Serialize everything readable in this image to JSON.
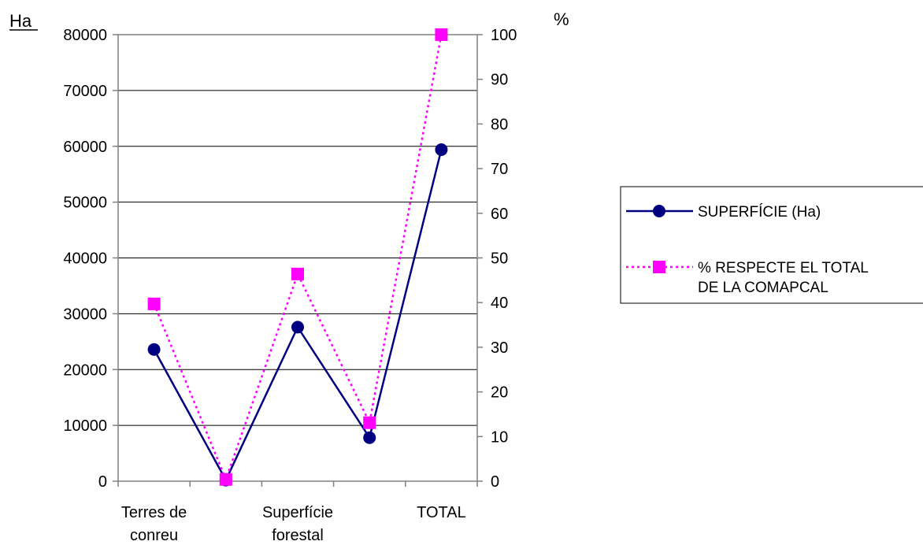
{
  "chart_data": {
    "type": "line",
    "categories": [
      "Terres de conreu",
      "",
      "Superfície forestal",
      "",
      "TOTAL"
    ],
    "y_left": {
      "label": "Ha",
      "ylim": [
        0,
        80000
      ],
      "ticks": [
        0,
        10000,
        20000,
        30000,
        40000,
        50000,
        60000,
        70000,
        80000
      ]
    },
    "y_right": {
      "label": "%",
      "ylim": [
        0,
        100
      ],
      "ticks": [
        0,
        10,
        20,
        30,
        40,
        50,
        60,
        70,
        80,
        90,
        100
      ]
    },
    "series": [
      {
        "name": "SUPERFÍCIE (Ha)",
        "axis": "left",
        "color": "#000080",
        "marker": "circle",
        "line_style": "solid",
        "values": [
          23600,
          200,
          27600,
          7800,
          59400
        ]
      },
      {
        "name": "% RESPECTE EL TOTAL DE LA COMAPCAL",
        "axis": "right",
        "color": "#FF00FF",
        "marker": "square",
        "line_style": "dotted",
        "values": [
          39.7,
          0.4,
          46.4,
          13.1,
          100
        ]
      }
    ],
    "legend": {
      "position": "right",
      "items": [
        {
          "lines": [
            "SUPERFÍCIE (Ha)"
          ]
        },
        {
          "lines": [
            "% RESPECTE EL TOTAL",
            "DE LA COMAPCAL"
          ]
        }
      ]
    },
    "grid": "horizontal"
  }
}
